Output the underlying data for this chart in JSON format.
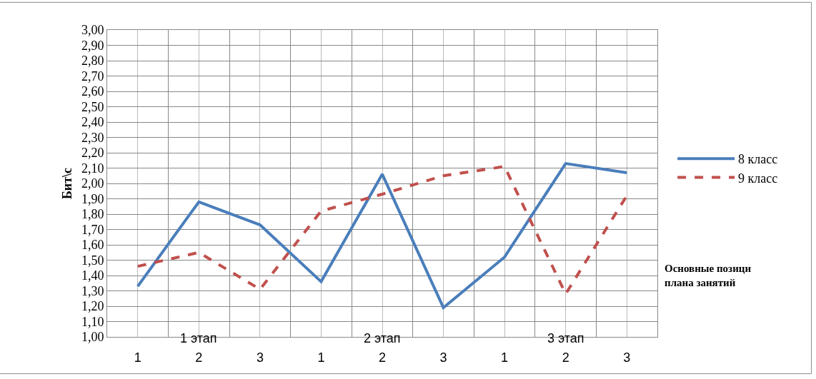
{
  "chart_data": {
    "type": "line",
    "categories": [
      "1",
      "2",
      "3",
      "1",
      "2",
      "3",
      "1",
      "2",
      "3"
    ],
    "series": [
      {
        "name": "8 класс",
        "color": "#4a7ebb",
        "line_style": "solid",
        "values": [
          1.33,
          1.88,
          1.73,
          1.36,
          2.06,
          1.19,
          1.52,
          2.13,
          2.07
        ]
      },
      {
        "name": "9 класс",
        "color": "#c0504d",
        "line_style": "dashed",
        "values": [
          1.46,
          1.55,
          1.31,
          1.82,
          1.93,
          2.05,
          2.11,
          1.28,
          1.92
        ]
      }
    ],
    "ylabel": "Бит\\с",
    "xlabel": "Основные позици плана занятий",
    "annotations": [
      "1 этап",
      "2 этап",
      "3 этап"
    ],
    "ylim": [
      1.0,
      3.0
    ],
    "yticks": [
      {
        "value": 1.0,
        "label": "1,00"
      },
      {
        "value": 1.1,
        "label": "1,10"
      },
      {
        "value": 1.2,
        "label": "1,20"
      },
      {
        "value": 1.3,
        "label": "1,30"
      },
      {
        "value": 1.4,
        "label": "1,40"
      },
      {
        "value": 1.5,
        "label": "1,50"
      },
      {
        "value": 1.6,
        "label": "1,60"
      },
      {
        "value": 1.7,
        "label": "1,70"
      },
      {
        "value": 1.8,
        "label": "1,80"
      },
      {
        "value": 1.9,
        "label": "1,90"
      },
      {
        "value": 2.0,
        "label": "2,00"
      },
      {
        "value": 2.1,
        "label": "2,10"
      },
      {
        "value": 2.2,
        "label": "2,20"
      },
      {
        "value": 2.3,
        "label": "2,30"
      },
      {
        "value": 2.4,
        "label": "2,40"
      },
      {
        "value": 2.5,
        "label": "2,50"
      },
      {
        "value": 2.6,
        "label": "2,60"
      },
      {
        "value": 2.7,
        "label": "2,70"
      },
      {
        "value": 2.8,
        "label": "2,80"
      },
      {
        "value": 2.9,
        "label": "2,90"
      },
      {
        "value": 3.0,
        "label": "3,00"
      }
    ],
    "grid": true,
    "legend": "right",
    "marker": "none"
  }
}
